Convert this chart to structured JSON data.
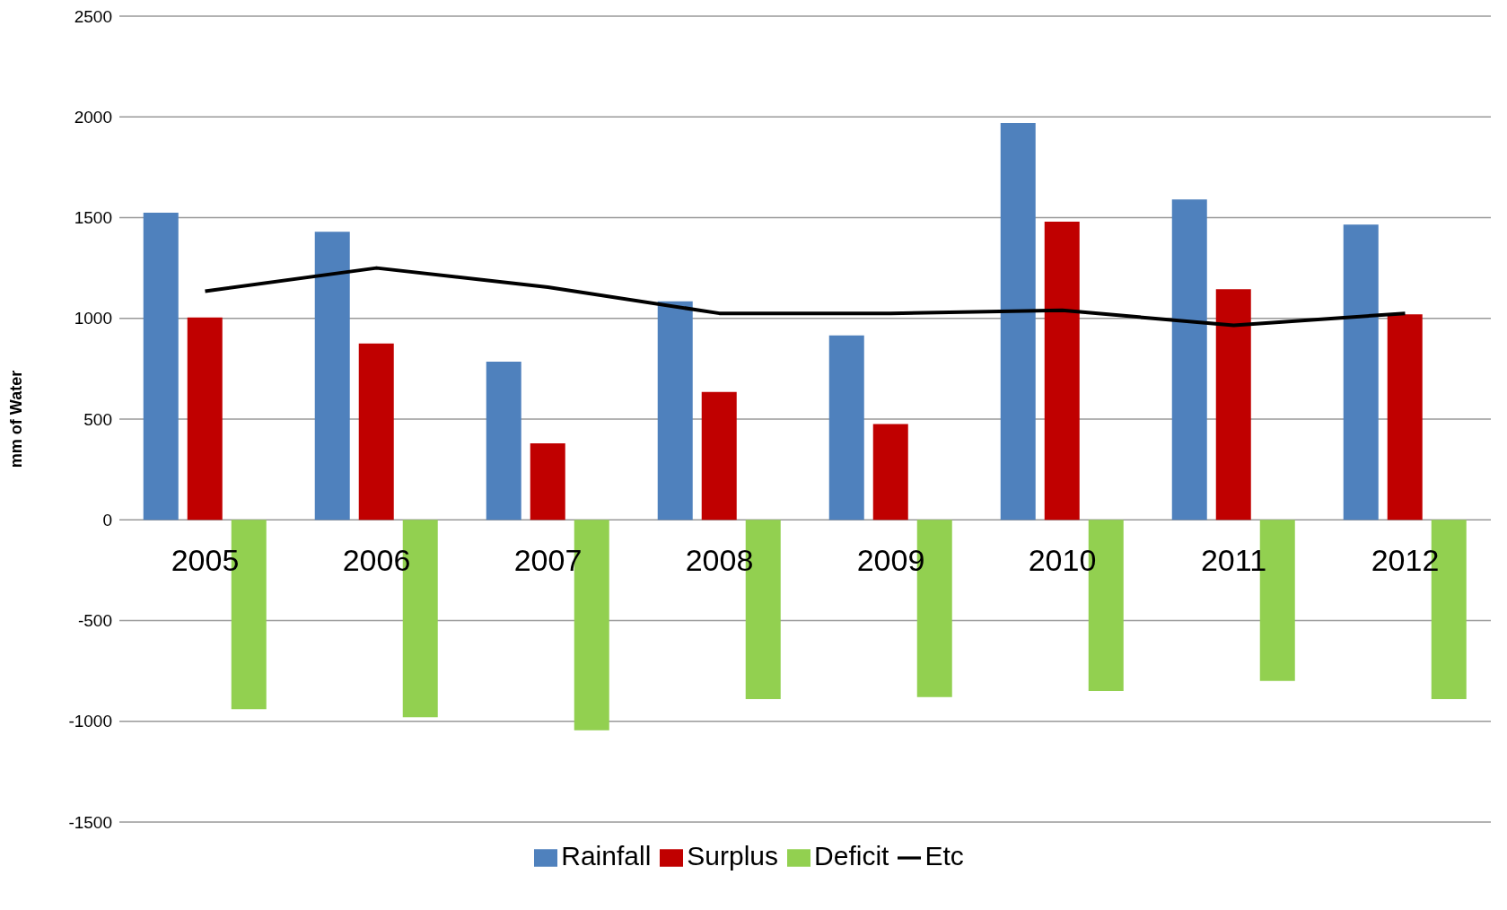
{
  "chart_data": {
    "type": "bar",
    "ylabel": "mm of Water",
    "categories": [
      "2005",
      "2006",
      "2007",
      "2008",
      "2009",
      "2010",
      "2011",
      "2012"
    ],
    "series": [
      {
        "name": "Rainfall",
        "color": "#4f81bd",
        "values": [
          1525,
          1430,
          785,
          1085,
          915,
          1970,
          1590,
          1465
        ]
      },
      {
        "name": "Surplus",
        "color": "#c00000",
        "values": [
          1005,
          875,
          380,
          635,
          475,
          1480,
          1145,
          1020
        ]
      },
      {
        "name": "Deficit",
        "color": "#92d050",
        "values": [
          -940,
          -980,
          -1045,
          -890,
          -880,
          -850,
          -800,
          -890
        ]
      },
      {
        "name": "Etc",
        "type": "line",
        "color": "#000000",
        "values": [
          1135,
          1250,
          1155,
          1025,
          1025,
          1040,
          965,
          1025
        ]
      }
    ],
    "ylim": [
      -1500,
      2500
    ],
    "yticks": [
      -1500,
      -1000,
      -500,
      0,
      500,
      1000,
      1500,
      2000,
      2500
    ],
    "grid": "y",
    "legend": "bottom",
    "marker": "none"
  }
}
